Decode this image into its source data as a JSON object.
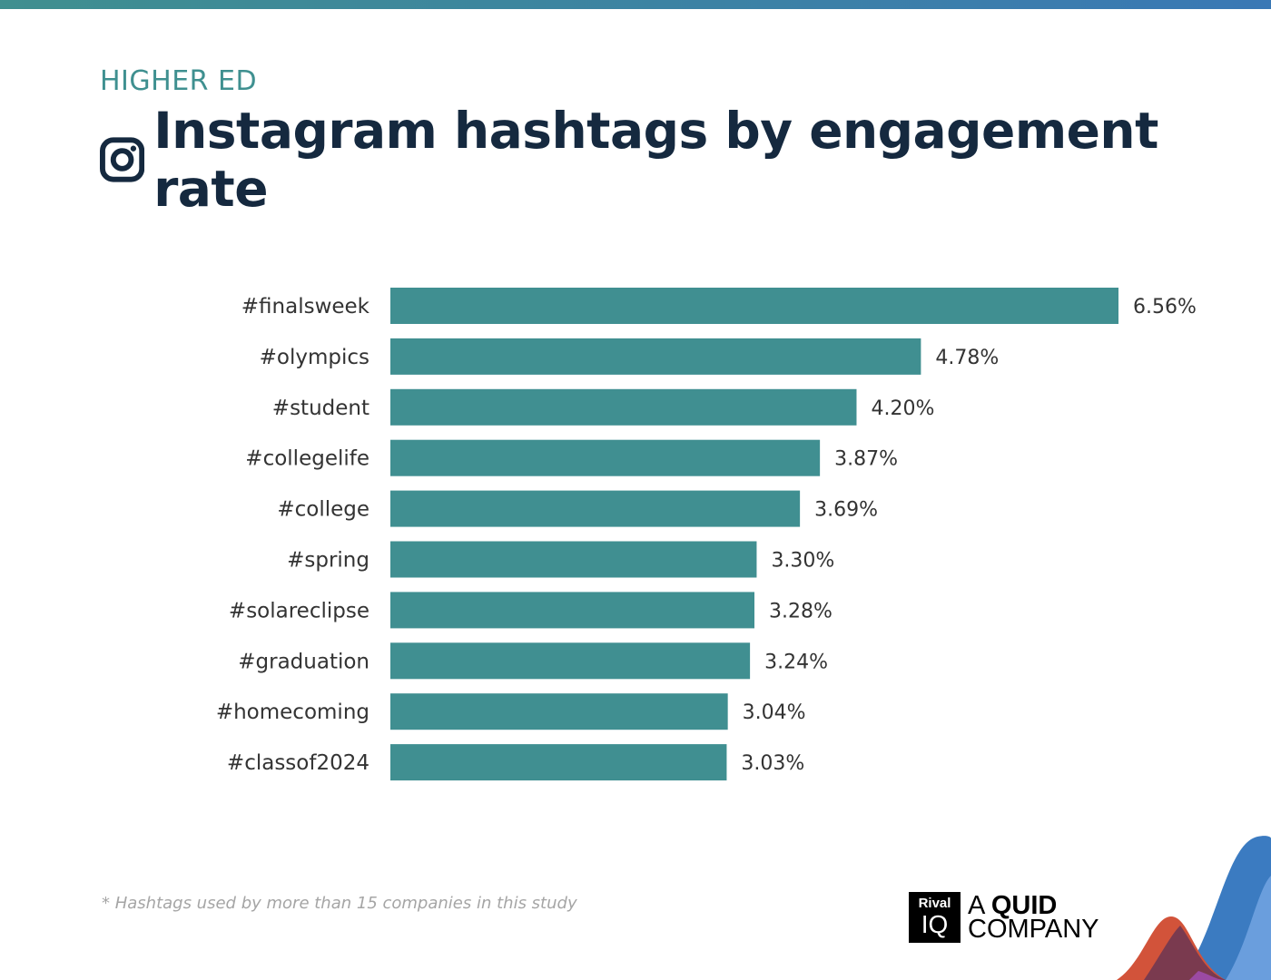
{
  "header": {
    "kicker": "HIGHER ED",
    "title": "Instagram hashtags by engagement rate",
    "icon": "instagram-icon"
  },
  "colors": {
    "bar": "#408f91",
    "title": "#15293f",
    "kicker": "#3f9090",
    "label": "#333333"
  },
  "chart_data": {
    "type": "bar",
    "orientation": "horizontal",
    "title": "Instagram hashtags by engagement rate",
    "categories": [
      "#finalsweek",
      "#olympics",
      "#student",
      "#collegelife",
      "#college",
      "#spring",
      "#solareclipse",
      "#graduation",
      "#homecoming",
      "#classof2024"
    ],
    "values": [
      6.56,
      4.78,
      4.2,
      3.87,
      3.69,
      3.3,
      3.28,
      3.24,
      3.04,
      3.03
    ],
    "value_labels": [
      "6.56%",
      "4.78%",
      "4.20%",
      "3.87%",
      "3.69%",
      "3.30%",
      "3.28%",
      "3.24%",
      "3.04%",
      "3.03%"
    ],
    "xlabel": "",
    "ylabel": "",
    "xlim": [
      0,
      6.56
    ],
    "grid": false
  },
  "footnote": "* Hashtags used by more than 15 companies in this study",
  "logo": {
    "rival": "Rival",
    "iq": "IQ",
    "line1_a": "A ",
    "line1_b": "QUID",
    "line2": "COMPANY"
  }
}
